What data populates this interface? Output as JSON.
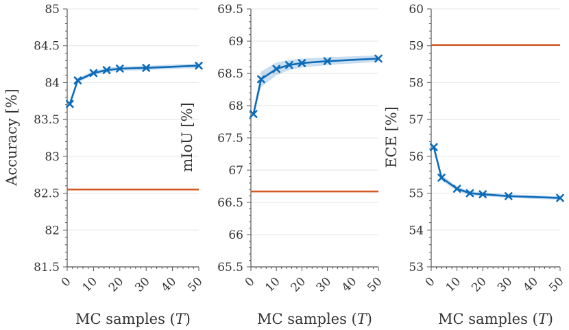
{
  "figure": {
    "background": "#ffffff"
  },
  "chart_data": [
    {
      "type": "line",
      "title": "",
      "xlabel_prefix": "MC samples (",
      "xlabel_var": "T",
      "xlabel_suffix": ")",
      "ylabel": "Accuracy [%]",
      "xlim": [
        0,
        50
      ],
      "ylim": [
        81.5,
        85
      ],
      "xticks": [
        0,
        10,
        20,
        30,
        40,
        50
      ],
      "yticks": [
        81.5,
        82,
        82.5,
        83,
        83.5,
        84,
        84.5,
        85
      ],
      "grid": true,
      "series": [
        {
          "color": "#0c6bb8",
          "marker": "x",
          "x": [
            1,
            4,
            10,
            15,
            20,
            30,
            50
          ],
          "y": [
            83.71,
            84.03,
            84.13,
            84.17,
            84.19,
            84.2,
            84.23
          ],
          "band": [
            0.02,
            0.03,
            0.03,
            0.03,
            0.03,
            0.03,
            0.03
          ]
        },
        {
          "color": "#d35a24",
          "marker": "none",
          "x": [
            0,
            50
          ],
          "y": [
            82.55,
            82.55
          ]
        }
      ]
    },
    {
      "type": "line",
      "title": "",
      "xlabel_prefix": "MC samples (",
      "xlabel_var": "T",
      "xlabel_suffix": ")",
      "ylabel": "mIoU [%]",
      "xlim": [
        0,
        50
      ],
      "ylim": [
        65.5,
        69.5
      ],
      "xticks": [
        0,
        10,
        20,
        30,
        40,
        50
      ],
      "yticks": [
        65.5,
        66,
        66.5,
        67,
        67.5,
        68,
        68.5,
        69,
        69.5
      ],
      "grid": true,
      "series": [
        {
          "color": "#0c6bb8",
          "marker": "x",
          "x": [
            1,
            4,
            10,
            15,
            20,
            30,
            50
          ],
          "y": [
            67.87,
            68.41,
            68.57,
            68.63,
            68.66,
            68.69,
            68.73
          ],
          "band": [
            0.04,
            0.12,
            0.1,
            0.08,
            0.07,
            0.06,
            0.05
          ]
        },
        {
          "color": "#d35a24",
          "marker": "none",
          "x": [
            0,
            50
          ],
          "y": [
            66.67,
            66.67
          ]
        }
      ]
    },
    {
      "type": "line",
      "title": "",
      "xlabel_prefix": "MC samples (",
      "xlabel_var": "T",
      "xlabel_suffix": ")",
      "ylabel": "ECE [%]",
      "xlim": [
        0,
        50
      ],
      "ylim": [
        53,
        60
      ],
      "xticks": [
        0,
        10,
        20,
        30,
        40,
        50
      ],
      "yticks": [
        53,
        54,
        55,
        56,
        57,
        58,
        59,
        60
      ],
      "grid": true,
      "series": [
        {
          "color": "#0c6bb8",
          "marker": "x",
          "x": [
            1,
            4,
            10,
            15,
            20,
            30,
            50
          ],
          "y": [
            56.25,
            55.42,
            55.12,
            55.0,
            54.97,
            54.92,
            54.87
          ],
          "band": [
            0.05,
            0.08,
            0.06,
            0.06,
            0.05,
            0.05,
            0.05
          ]
        },
        {
          "color": "#d35a24",
          "marker": "none",
          "x": [
            0,
            50
          ],
          "y": [
            59.02,
            59.02
          ]
        }
      ]
    }
  ]
}
